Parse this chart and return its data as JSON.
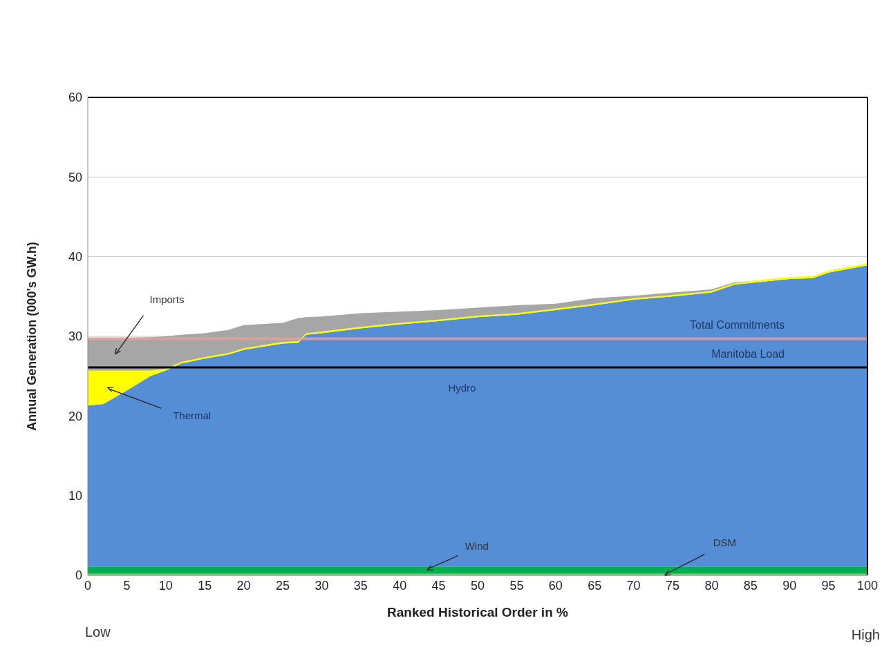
{
  "chart_data": {
    "type": "area",
    "stacked": true,
    "xlabel": "Ranked Historical Order in %",
    "ylabel": "Annual Generation (000's GW.h)",
    "x": [
      0,
      2,
      5,
      8,
      10,
      12,
      15,
      18,
      20,
      25,
      27,
      28,
      30,
      35,
      40,
      45,
      50,
      55,
      60,
      65,
      70,
      75,
      80,
      83,
      85,
      90,
      93,
      95,
      100
    ],
    "series": [
      {
        "name": "DSM",
        "color": "#92d050",
        "values": [
          0.2,
          0.2,
          0.2,
          0.2,
          0.2,
          0.2,
          0.2,
          0.2,
          0.2,
          0.2,
          0.2,
          0.2,
          0.2,
          0.2,
          0.2,
          0.2,
          0.2,
          0.2,
          0.2,
          0.2,
          0.2,
          0.2,
          0.2,
          0.2,
          0.2,
          0.2,
          0.2,
          0.2,
          0.2
        ]
      },
      {
        "name": "Wind",
        "color": "#00b050",
        "values": [
          0.9,
          0.9,
          0.9,
          0.9,
          0.9,
          0.9,
          0.9,
          0.9,
          0.9,
          0.9,
          0.9,
          0.9,
          0.9,
          0.9,
          0.9,
          0.9,
          0.9,
          0.9,
          0.9,
          0.9,
          0.9,
          0.9,
          0.9,
          0.9,
          0.9,
          0.9,
          0.9,
          0.9,
          0.9
        ]
      },
      {
        "name": "Hydro",
        "color": "#558ed5",
        "values": [
          20.2,
          20.4,
          22.1,
          23.9,
          24.6,
          25.5,
          26.1,
          26.6,
          27.2,
          28.0,
          28.1,
          29.1,
          29.3,
          29.9,
          30.4,
          30.8,
          31.3,
          31.6,
          32.2,
          32.8,
          33.5,
          33.9,
          34.4,
          35.4,
          35.6,
          36.1,
          36.2,
          36.9,
          37.8
        ]
      },
      {
        "name": "Thermal",
        "color": "#ffff00",
        "values": [
          4.4,
          4.2,
          2.5,
          0.7,
          0.2,
          0.2,
          0.2,
          0.2,
          0.2,
          0.2,
          0.2,
          0.2,
          0.2,
          0.2,
          0.2,
          0.2,
          0.2,
          0.2,
          0.2,
          0.2,
          0.2,
          0.2,
          0.2,
          0.2,
          0.2,
          0.2,
          0.2,
          0.2,
          0.2
        ]
      },
      {
        "name": "Imports",
        "color": "#a6a6a6",
        "values": [
          4.1,
          4.1,
          4.1,
          4.2,
          4.1,
          3.4,
          3.0,
          2.9,
          2.9,
          2.4,
          2.9,
          2.0,
          1.9,
          1.7,
          1.4,
          1.2,
          1.0,
          1.0,
          0.6,
          0.7,
          0.3,
          0.3,
          0.2,
          0.1,
          0.0,
          0.0,
          0.0,
          0.0,
          0.0
        ]
      }
    ],
    "xlim": [
      0,
      100
    ],
    "xticks": [
      0,
      5,
      10,
      15,
      20,
      25,
      30,
      35,
      40,
      45,
      50,
      55,
      60,
      65,
      70,
      75,
      80,
      85,
      90,
      95,
      100
    ],
    "ylim": [
      0,
      60
    ],
    "yticks": [
      0,
      10,
      20,
      30,
      40,
      50,
      60
    ],
    "grid": "y",
    "legend": false,
    "ref_lines": [
      {
        "axis": "y",
        "value": 29.7,
        "label": "Total Commitments",
        "color": "#e6a0a0"
      },
      {
        "axis": "y",
        "value": 26.1,
        "label": "Manitoba Load",
        "color": "#000000"
      }
    ],
    "annotations": [
      "Low",
      "High"
    ]
  }
}
